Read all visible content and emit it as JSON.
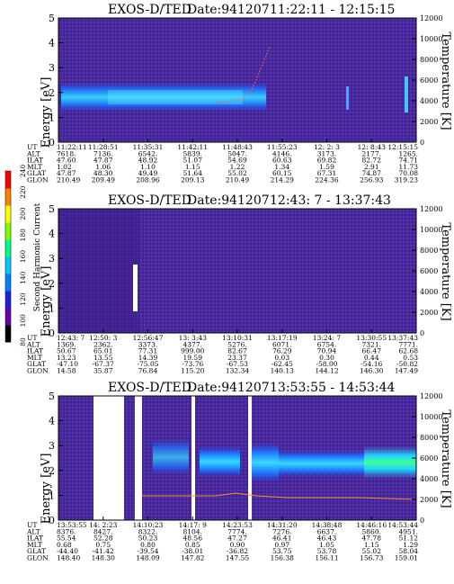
{
  "chart_data": [
    {
      "type": "heatmap",
      "title": "EXOS-D/TED",
      "date_label": "Date:941207",
      "time_range": "11:22:11 - 12:15:15",
      "ylabel": "Energy [eV]",
      "y2label": "Temperature [K]",
      "ylim": [
        0,
        5
      ],
      "y_ticks": [
        "0",
        "1",
        "2",
        "3",
        "4",
        "5"
      ],
      "y2lim": [
        0,
        12000
      ],
      "y2_ticks": [
        "0",
        "2000",
        "4000",
        "6000",
        "8000",
        "10000",
        "12000"
      ],
      "ephemeris_labels": [
        "UT",
        "ALT",
        "ILAT",
        "MLT",
        "GLAT",
        "GLON"
      ],
      "ephemeris_columns": [
        [
          "11:22:11",
          "7618.",
          "47.60",
          "1.02",
          "47.87",
          "210.49"
        ],
        [
          "11:28:51",
          "7136.",
          "47.87",
          "1.06",
          "48.30",
          "209.49"
        ],
        [
          "11:35:31",
          "6542.",
          "48.92",
          "1.10",
          "49.49",
          "208.96"
        ],
        [
          "11:42:11",
          "5839.",
          "51.07",
          "1.15",
          "51.64",
          "209.13"
        ],
        [
          "11:48:43",
          "5047.",
          "54.69",
          "1.22",
          "55.02",
          "210.49"
        ],
        [
          "11:55:23",
          "4146.",
          "60.63",
          "1.34",
          "60.15",
          "214.29"
        ],
        [
          "12: 2: 3",
          "3173.",
          "69.82",
          "1.59",
          "67.31",
          "224.36"
        ],
        [
          "12: 8:43",
          "2177.",
          "82.72",
          "2.91",
          "74.87",
          "256.93"
        ],
        [
          "12:15:15",
          "1265.",
          "74.71",
          "11.73",
          "70.08",
          "319.23"
        ]
      ],
      "color_scale": "blue (low) to cyan (high); purple background",
      "features": [
        {
          "name": "ion band",
          "t_start": 0.03,
          "t_end": 0.45,
          "energy_center": 2.0,
          "energy_halfwidth": 0.5,
          "intensity": "cyan"
        },
        {
          "name": "temperature trace",
          "description": "red dotted trace rising from ~1.7 eV near 11:45 to ~4.4 eV near 12:00"
        }
      ]
    },
    {
      "type": "heatmap",
      "title": "EXOS-D/TED",
      "date_label": "Date:941207",
      "time_range": "12:43: 7 - 13:37:43",
      "ylabel": "Energy [eV]",
      "y2label": "Temperature [K]",
      "ylim": [
        0,
        5
      ],
      "y_ticks": [
        "0",
        "1",
        "2",
        "3",
        "4",
        "5"
      ],
      "y2lim": [
        0,
        12000
      ],
      "y2_ticks": [
        "0",
        "2000",
        "4000",
        "6000",
        "8000",
        "10000",
        "12000"
      ],
      "ephemeris_labels": [
        "UT",
        "ALT",
        "ILAT",
        "MLT",
        "GLAT",
        "GLON"
      ],
      "ephemeris_columns": [
        [
          "12:43: 7",
          "1369.",
          "50.67",
          "13.23",
          "-47.10",
          "14.58"
        ],
        [
          "12:50: 3",
          "2362.",
          "65.01",
          "13.55",
          "-67.37",
          "35.87"
        ],
        [
          "12:56:47",
          "3373.",
          "77.31",
          "14.39",
          "-75.05",
          "76.84"
        ],
        [
          "13: 3:43",
          "4377.",
          "999.00",
          "19.59",
          "-73.76",
          "115.20"
        ],
        [
          "13:10:31",
          "5276.",
          "82.67",
          "23.37",
          "-67.53",
          "132.34"
        ],
        [
          "13:17:19",
          "6071.",
          "76.29",
          "0.03",
          "-62.45",
          "140.13"
        ],
        [
          "13:24: 7",
          "6754.",
          "70.94",
          "0.30",
          "-58.00",
          "144.12"
        ],
        [
          "13:30:55",
          "7321.",
          "66.47",
          "0.44",
          "-54.16",
          "146.30"
        ],
        [
          "13:37:43",
          "7771.",
          "62.68",
          "0.53",
          "-50.82",
          "147.49"
        ]
      ],
      "colorbar": {
        "label": "Second Harmonic Current",
        "ticks": [
          "80",
          "100",
          "120",
          "140",
          "160",
          "180",
          "200",
          "220",
          "240"
        ],
        "range": [
          80,
          240
        ],
        "colors": [
          "#000000",
          "#6a00a8",
          "#2020e0",
          "#0080ff",
          "#00c8ff",
          "#00ff80",
          "#80ff00",
          "#ffff00",
          "#ff8000",
          "#ff0000"
        ]
      }
    },
    {
      "type": "heatmap",
      "title": "EXOS-D/TED",
      "date_label": "Date:941207",
      "time_range": "13:53:55 - 14:53:44",
      "ylabel": "Energy [eV]",
      "y2label": "Temperature [K]",
      "ylim": [
        0,
        5
      ],
      "y_ticks": [
        "0",
        "1",
        "2",
        "3",
        "4",
        "5"
      ],
      "y2lim": [
        0,
        12000
      ],
      "y2_ticks": [
        "0",
        "2000",
        "4000",
        "6000",
        "8000",
        "10000",
        "12000"
      ],
      "ephemeris_labels": [
        "UT",
        "ALT",
        "ILAT",
        "MLT",
        "GLAT",
        "GLON"
      ],
      "ephemeris_columns": [
        [
          "13:53:55",
          "8376.",
          "55.54",
          "0.68",
          "-44.40",
          "148.40"
        ],
        [
          "14: 2:23",
          "8427.",
          "52.28",
          "0.75",
          "-41.42",
          "148.30"
        ],
        [
          "14:10:23",
          "8322.",
          "50.23",
          "0.80",
          "-39.54",
          "148.09"
        ],
        [
          "14:17: 9",
          "8104.",
          "48.56",
          "0.85",
          "-38.01",
          "147.82"
        ],
        [
          "14:23:53",
          "7774.",
          "47.27",
          "0.90",
          "-36.82",
          "147.55"
        ],
        [
          "14:31:20",
          "7276.",
          "46.41",
          "0.97",
          "53.75",
          "156.38"
        ],
        [
          "14:38:48",
          "6637.",
          "46.43",
          "1.05",
          "53.78",
          "156.11"
        ],
        [
          "14:46:16",
          "5860.",
          "47.78",
          "1.15",
          "55.02",
          "156.73"
        ],
        [
          "14:53:44",
          "4951.",
          "51.12",
          "1.29",
          "58.04",
          "159.01"
        ]
      ],
      "features": [
        {
          "name": "ion band",
          "energy_center": 2.3,
          "description": "banded cyan emission from 14:17 onward, bright green near 14:46-14:53"
        },
        {
          "name": "temperature trace",
          "description": "orange line near 1.5 eV (~3800 K) across the panel"
        }
      ]
    }
  ]
}
